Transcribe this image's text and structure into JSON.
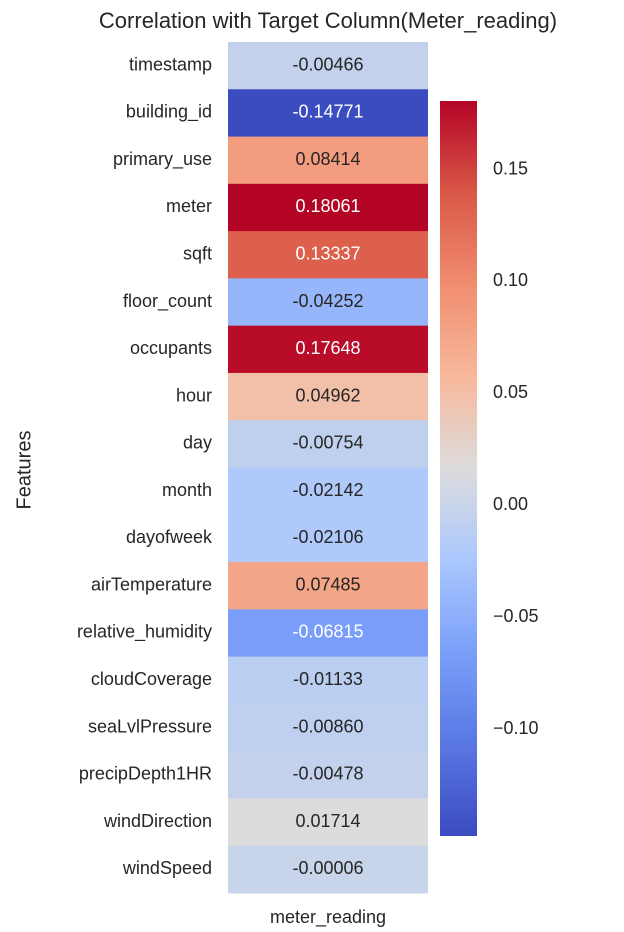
{
  "chart_data": {
    "type": "heatmap",
    "title": "Correlation with Target Column(Meter_reading)",
    "ylabel": "Features",
    "columns": [
      "meter_reading"
    ],
    "categories": [
      "timestamp",
      "building_id",
      "primary_use",
      "meter",
      "sqft",
      "floor_count",
      "occupants",
      "hour",
      "day",
      "month",
      "dayofweek",
      "airTemperature",
      "relative_humidity",
      "cloudCoverage",
      "seaLvlPressure",
      "precipDepth1HR",
      "windDirection",
      "windSpeed"
    ],
    "values": [
      -0.00466,
      -0.14771,
      0.08414,
      0.18061,
      0.13337,
      -0.04252,
      0.17648,
      0.04962,
      -0.00754,
      -0.02142,
      -0.02106,
      0.07485,
      -0.06815,
      -0.01133,
      -0.0086,
      -0.00478,
      0.01714,
      -6e-05
    ],
    "value_labels": [
      "-0.00466",
      "-0.14771",
      "0.08414",
      "0.18061",
      "0.13337",
      "-0.04252",
      "0.17648",
      "0.04962",
      "-0.00754",
      "-0.02142",
      "-0.02106",
      "0.07485",
      "-0.06815",
      "-0.01133",
      "-0.00860",
      "-0.00478",
      "0.01714",
      "-0.00006"
    ],
    "colormap": [
      "#3b4cc0",
      "#5977e3",
      "#7b9ff9",
      "#aac7fd",
      "#dddcdc",
      "#f7b89c",
      "#f18d6f",
      "#d95847",
      "#b40426"
    ],
    "clim": [
      -0.14771,
      0.18061
    ],
    "cticks": [
      {
        "value": 0.15,
        "label": "0.15"
      },
      {
        "value": 0.1,
        "label": "0.10"
      },
      0.05,
      {
        "value": 0,
        "label": "0.00"
      },
      {
        "value": -0.05,
        "label": "−0.05"
      },
      {
        "value": -0.1,
        "label": "−0.10"
      }
    ]
  }
}
